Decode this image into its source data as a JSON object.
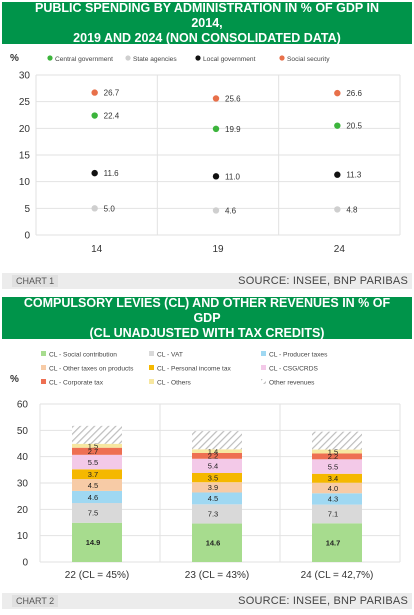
{
  "chart1": {
    "title_line1": "PUBLIC SPENDING BY ADMINISTRATION IN % OF GDP IN 2014,",
    "title_line2": "2019 AND 2024 (NON CONSOLIDATED DATA)",
    "footer_label": "CHART 1",
    "source": "SOURCE: INSEE, BNP PARIBAS"
  },
  "chart2": {
    "title_line1": "COMPULSORY LEVIES (CL) AND OTHER REVENUES IN % OF GDP",
    "title_line2": "(CL UNADJUSTED WITH TAX CREDITS)",
    "footer_label": "CHART 2",
    "source": "SOURCE: INSEE, BNP PARIBAS"
  },
  "chart_data": [
    {
      "type": "scatter",
      "title": "PUBLIC SPENDING BY ADMINISTRATION IN % OF GDP IN 2014, 2019 AND 2024 (NON CONSOLIDATED DATA)",
      "ylabel": "%",
      "ylim": [
        0,
        30
      ],
      "yticks": [
        0,
        5,
        10,
        15,
        20,
        25,
        30
      ],
      "grid": true,
      "legend_position": "top",
      "categories": [
        "14",
        "19",
        "24"
      ],
      "series": [
        {
          "name": "Central government",
          "color": "#3cb43c",
          "values": [
            22.4,
            19.9,
            20.5
          ],
          "labels": [
            "22.4",
            "19.9",
            "20.5"
          ]
        },
        {
          "name": "State agencies",
          "color": "#cfcfcf",
          "values": [
            5.0,
            4.6,
            4.8
          ],
          "labels": [
            "5.0",
            "4.6",
            "4.8"
          ]
        },
        {
          "name": "Local government",
          "color": "#111111",
          "values": [
            11.6,
            11.0,
            11.3
          ],
          "labels": [
            "11.6",
            "11.0",
            "11.3"
          ]
        },
        {
          "name": "Social security",
          "color": "#e8704a",
          "values": [
            26.7,
            25.6,
            26.6
          ],
          "labels": [
            "26.7",
            "25.6",
            "26.6"
          ]
        }
      ]
    },
    {
      "type": "bar",
      "stacked": true,
      "title": "COMPULSORY LEVIES (CL) AND OTHER REVENUES IN % OF GDP (CL UNADJUSTED WITH TAX CREDITS)",
      "ylabel": "%",
      "ylim": [
        0,
        60
      ],
      "yticks": [
        0,
        10,
        20,
        30,
        40,
        50,
        60
      ],
      "grid": true,
      "legend_position": "top",
      "categories": [
        "22 (CL = 45%)",
        "23 (CL = 43%)",
        "24 (CL = 42,7%)"
      ],
      "series": [
        {
          "name": "CL - Social contribution",
          "color": "#a7dc8e",
          "pattern": false,
          "values": [
            14.9,
            14.6,
            14.7
          ],
          "labels": [
            "14.9",
            "14.6",
            "14.7"
          ]
        },
        {
          "name": "CL - VAT",
          "color": "#d9d9d9",
          "pattern": false,
          "values": [
            7.5,
            7.3,
            7.1
          ],
          "labels": [
            "7.5",
            "7.3",
            "7.1"
          ]
        },
        {
          "name": "CL - Producer taxes",
          "color": "#9fd8f2",
          "pattern": false,
          "values": [
            4.6,
            4.5,
            4.3
          ],
          "labels": [
            "4.6",
            "4.5",
            "4.3"
          ]
        },
        {
          "name": "CL - Other taxes on products",
          "color": "#f7cba6",
          "pattern": false,
          "values": [
            4.5,
            3.9,
            4.0
          ],
          "labels": [
            "4.5",
            "3.9",
            "4.0"
          ]
        },
        {
          "name": "CL - Personal income tax",
          "color": "#f5b800",
          "pattern": false,
          "values": [
            3.7,
            3.5,
            3.4
          ],
          "labels": [
            "3.7",
            "3.5",
            "3.4"
          ]
        },
        {
          "name": "CL - CSG/CRDS",
          "color": "#f3c9e8",
          "pattern": false,
          "values": [
            5.5,
            5.4,
            5.5
          ],
          "labels": [
            "5.5",
            "5.4",
            "5.5"
          ]
        },
        {
          "name": "CL - Corporate tax",
          "color": "#ee6f52",
          "pattern": false,
          "values": [
            2.7,
            2.2,
            2.2
          ],
          "labels": [
            "2.7",
            "2.2",
            "2.2"
          ]
        },
        {
          "name": "CL - Others",
          "color": "#f7e7a0",
          "pattern": false,
          "values": [
            1.5,
            1.4,
            1.5
          ],
          "labels": [
            "1.5",
            "1.4",
            "1.5"
          ]
        },
        {
          "name": "Other revenues",
          "color": "#bdbdbd",
          "pattern": true,
          "values": [
            6.8,
            6.9,
            6.8
          ],
          "labels": []
        }
      ]
    }
  ]
}
